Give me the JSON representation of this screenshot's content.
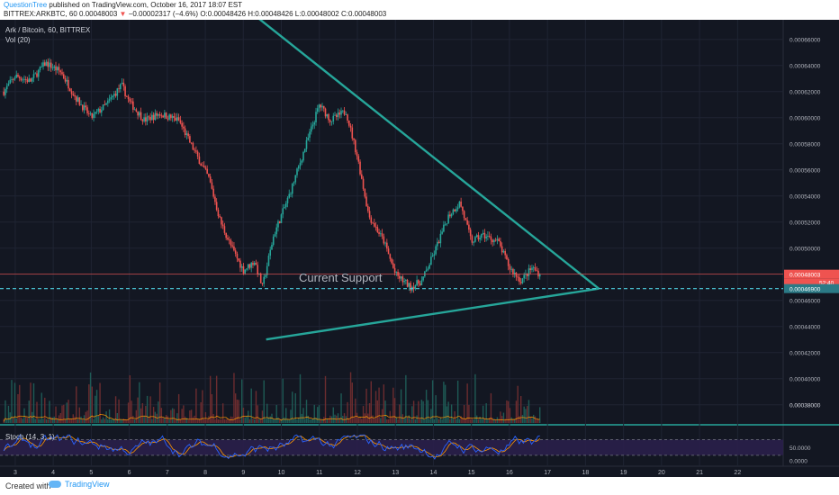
{
  "header": {
    "author": "QuestionTree",
    "published": "published on TradingView.com, October 16, 2017 18:07 EST",
    "symbol": "BITTREX:ARKBTC, 60",
    "last": "0.00048003",
    "change_arrow": "▼",
    "change": "−0.00002317 (−4.6%)",
    "open": "O:0.00048426",
    "high": "H:0.00048426",
    "low": "L:0.00048002",
    "close": "C:0.00048003"
  },
  "legend": {
    "pair": "Ark / Bitcoin, 60, BITTREX",
    "volume": "Vol (20)",
    "stoch": "Stoch (14, 3, 1)"
  },
  "footer": {
    "created": "Created with",
    "brand": "TradingView",
    "brand_icon": "tradingview-cloud-icon"
  },
  "colors": {
    "bg": "#131722",
    "up": "#26a69a",
    "down": "#ef5350",
    "trend": "#26a69a",
    "stoch_k": "#2962ff",
    "stoch_d": "#ff9800"
  },
  "chart_data": [
    {
      "type": "candlestick",
      "title": "Ark / Bitcoin, 60, BITTREX",
      "x_ticks": [
        "3",
        "4",
        "5",
        "6",
        "7",
        "8",
        "9",
        "10",
        "11",
        "12",
        "13",
        "14",
        "15",
        "16",
        "17",
        "18",
        "19",
        "20",
        "21",
        "22"
      ],
      "y_ticks": [
        "0.00066000",
        "0.00064000",
        "0.00062000",
        "0.00060000",
        "0.00058000",
        "0.00056000",
        "0.00054000",
        "0.00052000",
        "0.00050000",
        "0.00048000",
        "0.00046000",
        "0.00044000",
        "0.00042000",
        "0.00040000",
        "0.00038000"
      ],
      "ylim": [
        0.000366,
        0.000675
      ],
      "xlim": [
        2.6,
        23.2
      ],
      "close_path": [
        {
          "x": 2.7,
          "y": 0.00062
        },
        {
          "x": 3.0,
          "y": 0.000632
        },
        {
          "x": 3.4,
          "y": 0.000628
        },
        {
          "x": 3.8,
          "y": 0.000642
        },
        {
          "x": 4.2,
          "y": 0.000635
        },
        {
          "x": 4.6,
          "y": 0.000615
        },
        {
          "x": 5.0,
          "y": 0.0006
        },
        {
          "x": 5.4,
          "y": 0.00061
        },
        {
          "x": 5.8,
          "y": 0.000625
        },
        {
          "x": 6.0,
          "y": 0.000612
        },
        {
          "x": 6.4,
          "y": 0.000598
        },
        {
          "x": 6.8,
          "y": 0.000603
        },
        {
          "x": 7.3,
          "y": 0.000598
        },
        {
          "x": 7.7,
          "y": 0.000575
        },
        {
          "x": 8.1,
          "y": 0.000553
        },
        {
          "x": 8.4,
          "y": 0.00052
        },
        {
          "x": 8.7,
          "y": 0.0005
        },
        {
          "x": 9.0,
          "y": 0.000483
        },
        {
          "x": 9.3,
          "y": 0.00049
        },
        {
          "x": 9.5,
          "y": 0.00047
        },
        {
          "x": 9.8,
          "y": 0.00051
        },
        {
          "x": 10.2,
          "y": 0.00054
        },
        {
          "x": 10.6,
          "y": 0.000575
        },
        {
          "x": 11.0,
          "y": 0.00061
        },
        {
          "x": 11.3,
          "y": 0.000598
        },
        {
          "x": 11.7,
          "y": 0.000605
        },
        {
          "x": 12.0,
          "y": 0.00057
        },
        {
          "x": 12.3,
          "y": 0.000525
        },
        {
          "x": 12.7,
          "y": 0.000505
        },
        {
          "x": 13.0,
          "y": 0.00048
        },
        {
          "x": 13.4,
          "y": 0.00047
        },
        {
          "x": 13.7,
          "y": 0.000475
        },
        {
          "x": 14.0,
          "y": 0.000495
        },
        {
          "x": 14.4,
          "y": 0.000525
        },
        {
          "x": 14.7,
          "y": 0.000535
        },
        {
          "x": 15.0,
          "y": 0.000505
        },
        {
          "x": 15.3,
          "y": 0.00051
        },
        {
          "x": 15.7,
          "y": 0.000505
        },
        {
          "x": 16.0,
          "y": 0.000485
        },
        {
          "x": 16.3,
          "y": 0.000475
        },
        {
          "x": 16.6,
          "y": 0.000485
        },
        {
          "x": 16.8,
          "y": 0.00048
        }
      ],
      "last_price": "0.00048003",
      "countdown": "52:40",
      "support_price": "0.00046900",
      "support_label": "Current Support",
      "trendlines": [
        {
          "from": {
            "x": 8.8,
            "y": 0.00069
          },
          "to": {
            "x": 18.35,
            "y": 0.000469
          }
        },
        {
          "from": {
            "x": 9.6,
            "y": 0.00043
          },
          "to": {
            "x": 18.35,
            "y": 0.000469
          }
        }
      ]
    },
    {
      "type": "bar",
      "title": "Vol (20)",
      "y_ticks": [
        "0.00038000"
      ]
    },
    {
      "type": "line",
      "title": "Stoch (14, 3, 1)",
      "y_ticks": [
        "50.0000",
        "0.0000"
      ],
      "ylim": [
        -15,
        130
      ],
      "bands": [
        80,
        20
      ]
    }
  ]
}
